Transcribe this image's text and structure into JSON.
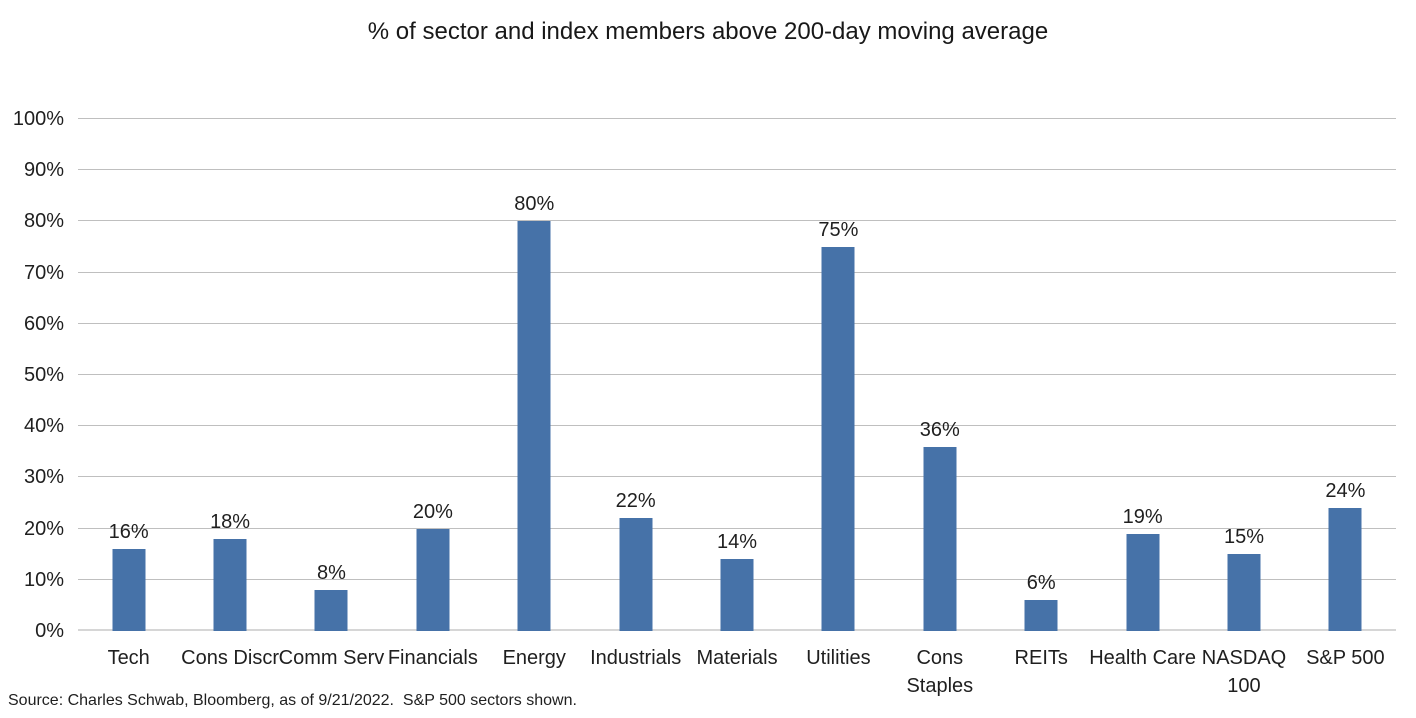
{
  "page": {
    "background": "#ffffff"
  },
  "colors": {
    "bar": "#4672a8",
    "gridline": "#bfbfbf",
    "baseline": "#d6d6d6",
    "text": "#1f1f1f"
  },
  "source_note": "Source: Charles Schwab, Bloomberg, as of 9/21/2022.  S&P 500 sectors shown.",
  "chart_data": {
    "type": "bar",
    "title": "% of sector and index members above 200-day moving average",
    "categories": [
      "Tech",
      "Cons Discr",
      "Comm Serv",
      "Financials",
      "Energy",
      "Industrials",
      "Materials",
      "Utilities",
      "Cons Staples",
      "REITs",
      "Health Care",
      "NASDAQ 100",
      "S&P 500"
    ],
    "category_display": [
      "Tech",
      "Cons Discr",
      "Comm Serv",
      "Financials",
      "Energy",
      "Industrials",
      "Materials",
      "Utilities",
      "Cons\nStaples",
      "REITs",
      "Health Care",
      "NASDAQ\n100",
      "S&P 500"
    ],
    "values": [
      16,
      18,
      8,
      20,
      80,
      22,
      14,
      75,
      36,
      6,
      19,
      15,
      24
    ],
    "unit": "%",
    "xlabel": "",
    "ylabel": "",
    "ylim": [
      0,
      100
    ],
    "yticks": [
      0,
      10,
      20,
      30,
      40,
      50,
      60,
      70,
      80,
      90,
      100
    ],
    "ytick_labels": [
      "0%",
      "10%",
      "20%",
      "30%",
      "40%",
      "50%",
      "60%",
      "70%",
      "80%",
      "90%",
      "100%"
    ],
    "grid": "horizontal",
    "legend": "none",
    "data_labels": "above-bars"
  }
}
